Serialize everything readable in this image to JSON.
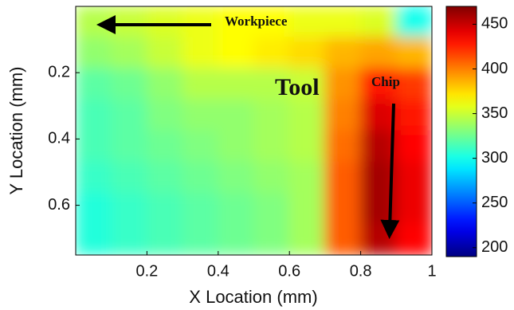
{
  "chart_data": {
    "type": "heatmap",
    "colormap": "jet",
    "xlabel": "X Location (mm)",
    "ylabel": "Y Location (mm)",
    "x": [
      0.05,
      0.15,
      0.25,
      0.35,
      0.45,
      0.55,
      0.65,
      0.75,
      0.85,
      0.95
    ],
    "y": [
      0.047,
      0.14,
      0.234,
      0.328,
      0.422,
      0.516,
      0.609,
      0.703
    ],
    "z": [
      [
        345,
        350,
        355,
        360,
        365,
        365,
        360,
        360,
        355,
        300
      ],
      [
        335,
        340,
        350,
        360,
        365,
        370,
        375,
        385,
        390,
        385
      ],
      [
        320,
        325,
        335,
        345,
        345,
        345,
        350,
        395,
        430,
        420
      ],
      [
        315,
        320,
        330,
        335,
        335,
        340,
        345,
        400,
        445,
        430
      ],
      [
        315,
        320,
        325,
        330,
        335,
        340,
        345,
        405,
        455,
        435
      ],
      [
        310,
        315,
        320,
        325,
        330,
        335,
        340,
        410,
        460,
        440
      ],
      [
        305,
        310,
        315,
        320,
        325,
        330,
        340,
        410,
        460,
        440
      ],
      [
        305,
        310,
        315,
        320,
        325,
        330,
        340,
        410,
        455,
        435
      ]
    ],
    "xlim": [
      0,
      1
    ],
    "ylim": [
      0,
      0.75
    ],
    "xticks": [
      0.2,
      0.4,
      0.6,
      0.8,
      1
    ],
    "yticks": [
      0.2,
      0.4,
      0.6
    ],
    "clim": [
      190,
      470
    ],
    "cticks": [
      200,
      250,
      300,
      350,
      400,
      450
    ],
    "annotations": [
      "Workpiece",
      "Tool",
      "Chip"
    ]
  }
}
